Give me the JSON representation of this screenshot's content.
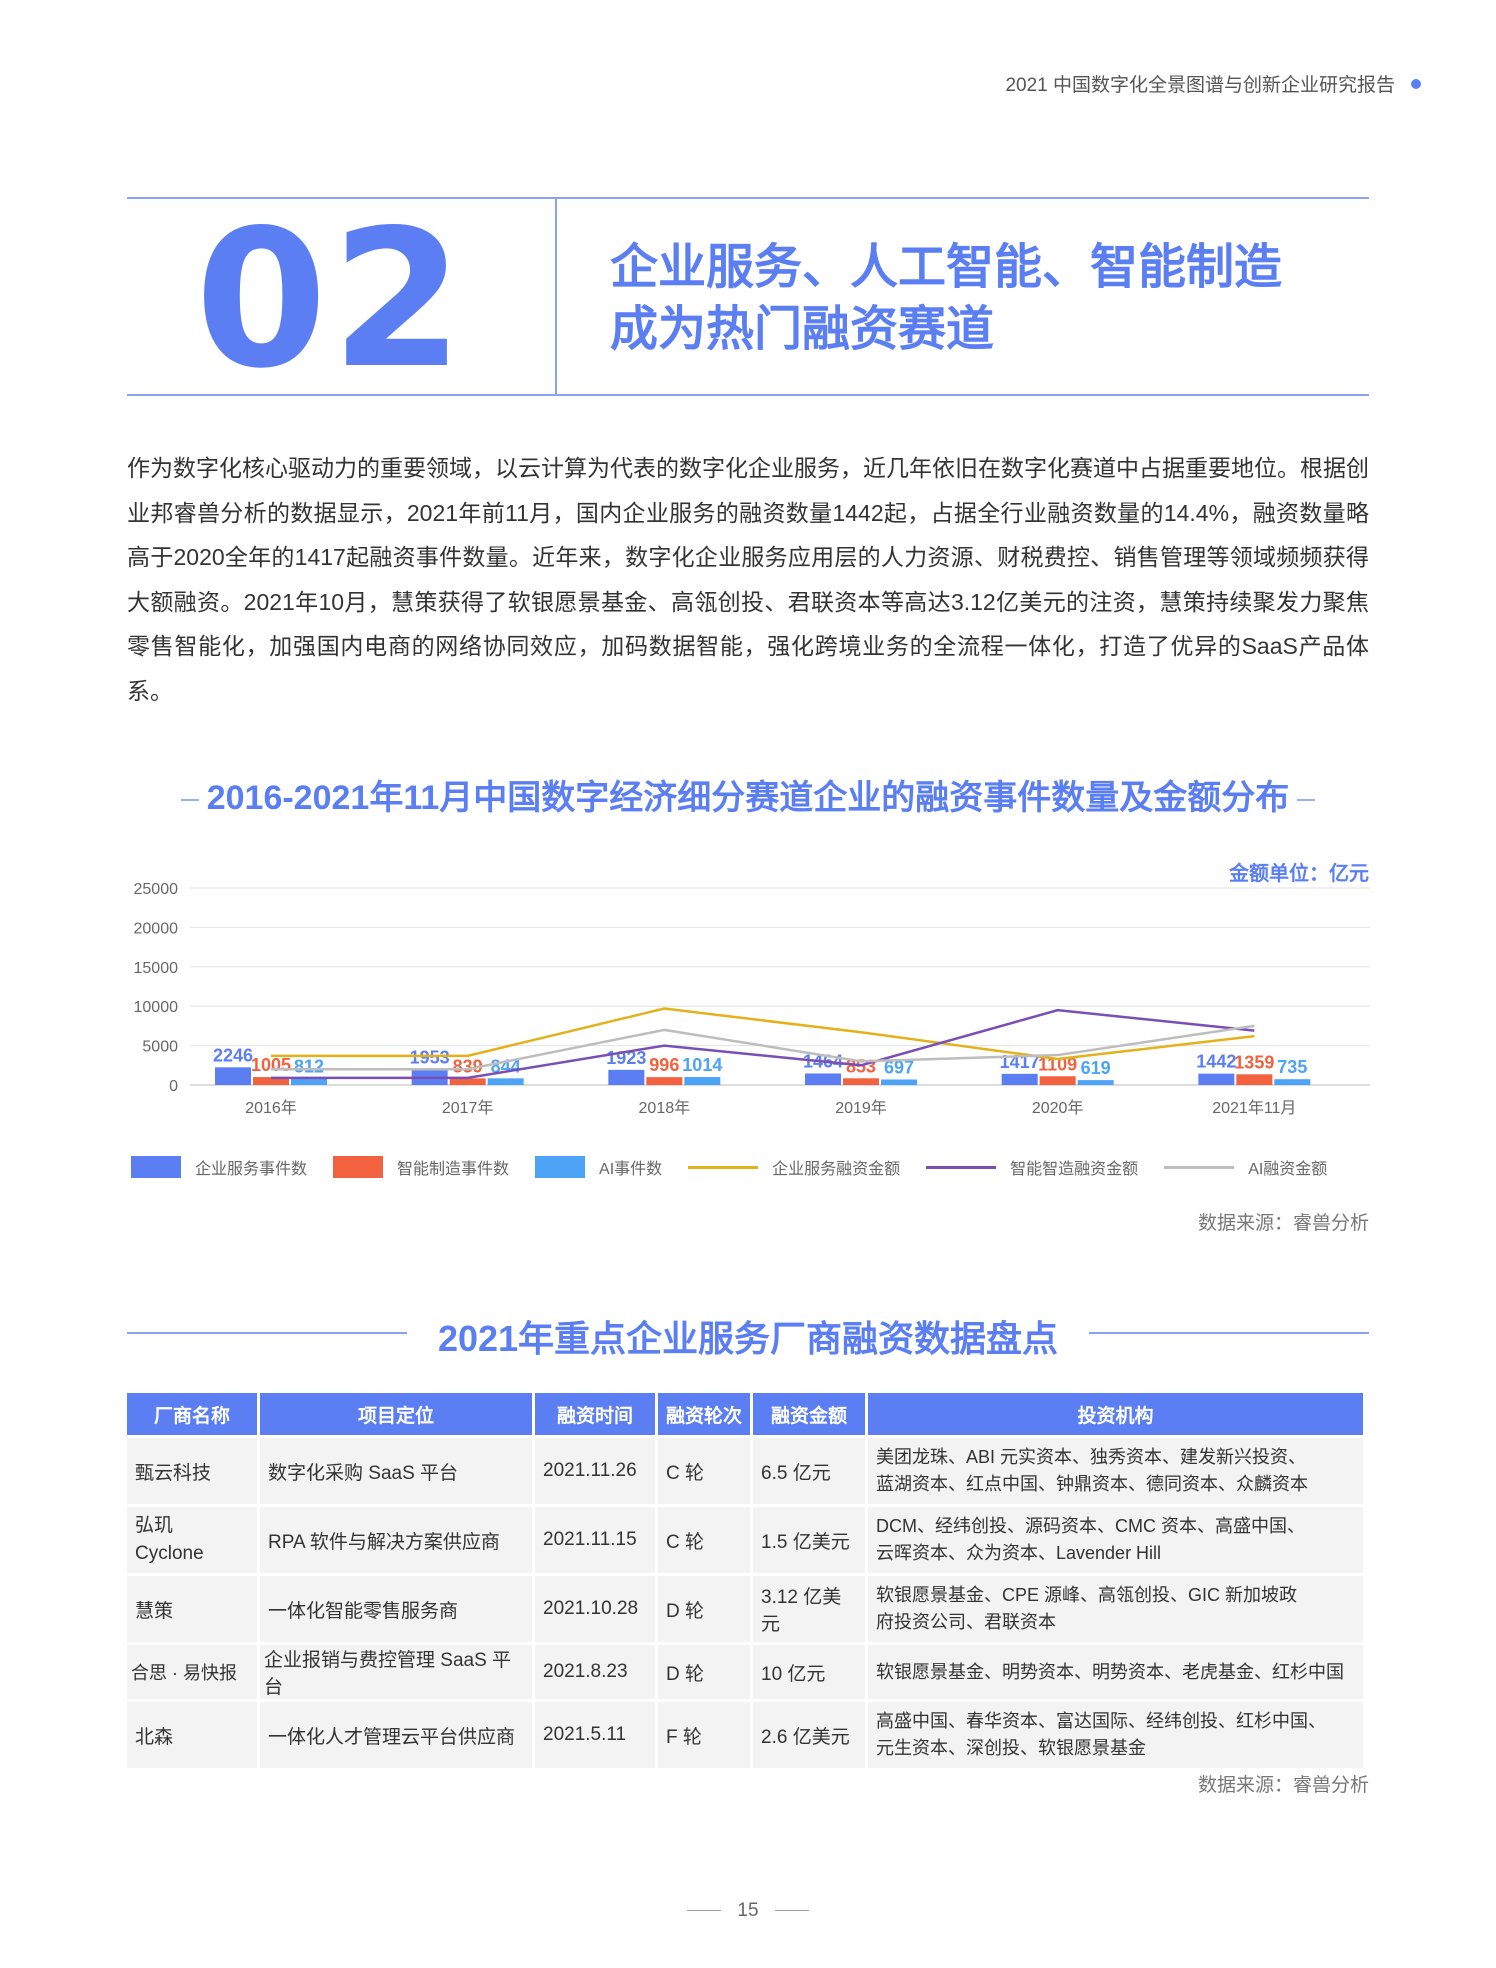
{
  "header": {
    "report_title": "2021 中国数字化全景图谱与创新企业研究报告"
  },
  "section": {
    "number": "02",
    "title_line1": "企业服务、人工智能、智能制造",
    "title_line2": "成为热门融资赛道"
  },
  "intro": "作为数字化核心驱动力的重要领域，以云计算为代表的数字化企业服务，近几年依旧在数字化赛道中占据重要地位。根据创业邦睿兽分析的数据显示，2021年前11月，国内企业服务的融资数量1442起，占据全行业融资数量的14.4%，融资数量略高于2020全年的1417起融资事件数量。近年来，数字化企业服务应用层的人力资源、财税费控、销售管理等领域频频获得大额融资。2021年10月，慧策获得了软银愿景基金、高瓴创投、君联资本等高达3.12亿美元的注资，慧策持续聚发力聚焦零售智能化，加强国内电商的网络协同效应，加码数据智能，强化跨境业务的全流程一体化，打造了优异的SaaS产品体系。",
  "chart_data": {
    "type": "bar",
    "title": "2016-2021年11月中国数字经济细分赛道企业的融资事件数量及金额分布",
    "unit_label": "金额单位：亿元",
    "categories": [
      "2016年",
      "2017年",
      "2018年",
      "2019年",
      "2020年",
      "2021年11月"
    ],
    "ylim": [
      0,
      25000
    ],
    "yticks": [
      0,
      5000,
      10000,
      15000,
      20000,
      25000
    ],
    "grid": true,
    "legend_position": "bottom",
    "bar_series": [
      {
        "name": "企业服务事件数",
        "color": "#5b7ff3",
        "values": [
          2246,
          1953,
          1923,
          1464,
          1417,
          1442
        ],
        "label_color": "#5b7ff3"
      },
      {
        "name": "智能制造事件数",
        "color": "#f2623e",
        "values": [
          1005,
          839,
          996,
          853,
          1109,
          1359
        ],
        "label_color": "#f2623e"
      },
      {
        "name": "AI事件数",
        "color": "#4da3f5",
        "values": [
          812,
          844,
          1014,
          697,
          619,
          735
        ],
        "label_color": "#4da3f5"
      }
    ],
    "line_series": [
      {
        "name": "企业服务融资金额",
        "color": "#e3b21a",
        "values": [
          3700,
          3700,
          9700,
          6700,
          3300,
          6200
        ]
      },
      {
        "name": "智能智造融资金额",
        "color": "#7a4fb5",
        "values": [
          900,
          900,
          5000,
          2500,
          9500,
          6900
        ]
      },
      {
        "name": "AI融资金额",
        "color": "#bdbdbd",
        "values": [
          2000,
          2000,
          7000,
          3000,
          3800,
          7500
        ]
      }
    ],
    "source": "数据来源：睿兽分析"
  },
  "table": {
    "title": "2021年重点企业服务厂商融资数据盘点",
    "headers": [
      "厂商名称",
      "项目定位",
      "融资时间",
      "融资轮次",
      "融资金额",
      "投资机构"
    ],
    "rows": [
      {
        "name": "甄云科技",
        "position": "数字化采购 SaaS 平台",
        "date": "2021.11.26",
        "round": "C 轮",
        "amount": "6.5 亿元",
        "investors_l1": "美团龙珠、ABI 元实资本、独秀资本、建发新兴投资、",
        "investors_l2": "蓝湖资本、红点中国、钟鼎资本、德同资本、众麟资本"
      },
      {
        "name": "弘玑 Cyclone",
        "position": "RPA 软件与解决方案供应商",
        "date": "2021.11.15",
        "round": "C 轮",
        "amount": "1.5 亿美元",
        "investors_l1": "DCM、经纬创投、源码资本、CMC 资本、高盛中国、",
        "investors_l2": "云晖资本、众为资本、Lavender Hill"
      },
      {
        "name": "慧策",
        "position": "一体化智能零售服务商",
        "date": "2021.10.28",
        "round": "D 轮",
        "amount": "3.12 亿美元",
        "investors_l1": "软银愿景基金、CPE 源峰、高瓴创投、GIC 新加坡政",
        "investors_l2": "府投资公司、君联资本"
      },
      {
        "name": "合思 · 易快报",
        "position": "企业报销与费控管理 SaaS 平台",
        "date": "2021.8.23",
        "round": "D 轮",
        "amount": "10 亿元",
        "investors_l1": "软银愿景基金、明势资本、明势资本、老虎基金、红杉中国",
        "investors_l2": ""
      },
      {
        "name": "北森",
        "position": "一体化人才管理云平台供应商",
        "date": "2021.5.11",
        "round": "F 轮",
        "amount": "2.6 亿美元",
        "investors_l1": "高盛中国、春华资本、富达国际、经纬创投、红杉中国、",
        "investors_l2": "元生资本、深创投、软银愿景基金"
      }
    ],
    "source": "数据来源：睿兽分析"
  },
  "page_number": "15"
}
